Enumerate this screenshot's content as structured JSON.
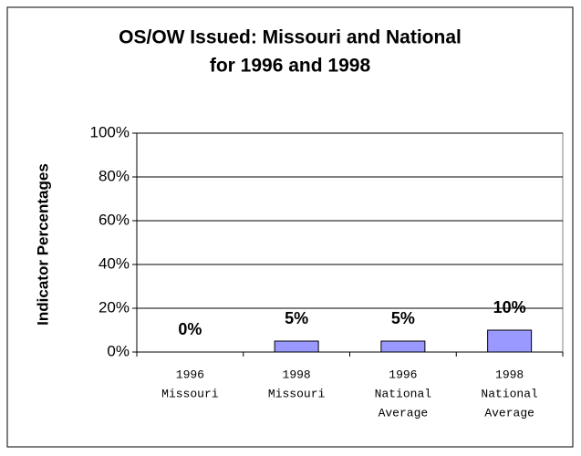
{
  "chart_data": {
    "type": "bar",
    "title": [
      "OS/OW Issued: Missouri and National",
      "for 1996 and 1998"
    ],
    "ylabel": "Indicator Percentages",
    "categories": [
      [
        "1996",
        "Missouri"
      ],
      [
        "1998",
        "Missouri"
      ],
      [
        "1996",
        "National",
        "Average"
      ],
      [
        "1998",
        "National",
        "Average"
      ]
    ],
    "values": [
      0,
      5,
      5,
      10
    ],
    "value_labels": [
      "0%",
      "5%",
      "5%",
      "10%"
    ],
    "color": "#9999ff",
    "ylim": [
      0,
      100
    ],
    "yticks": [
      {
        "value": 0,
        "label": "0%"
      },
      {
        "value": 20,
        "label": "20%"
      },
      {
        "value": 40,
        "label": "40%"
      },
      {
        "value": 60,
        "label": "60%"
      },
      {
        "value": 80,
        "label": "80%"
      },
      {
        "value": 100,
        "label": "100%"
      }
    ],
    "grid": true
  }
}
